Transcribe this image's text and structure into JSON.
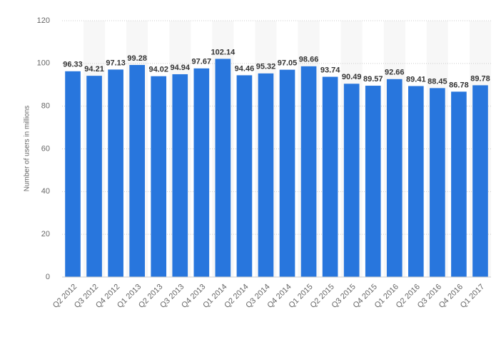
{
  "chart_data": {
    "type": "bar",
    "y_axis_label": "Number of users in millions",
    "categories": [
      "Q2 2012",
      "Q3 2012",
      "Q4 2012",
      "Q1 2013",
      "Q2 2013",
      "Q3 2013",
      "Q4 2013",
      "Q1 2014",
      "Q2 2014",
      "Q3 2014",
      "Q4 2014",
      "Q1 2015",
      "Q2 2015",
      "Q3 2015",
      "Q4 2015",
      "Q1 2016",
      "Q2 2016",
      "Q3 2016",
      "Q4 2016",
      "Q1 2017"
    ],
    "values": [
      96.33,
      94.21,
      97.13,
      99.28,
      94.02,
      94.94,
      97.67,
      102.14,
      94.46,
      95.32,
      97.05,
      98.66,
      93.74,
      90.49,
      89.57,
      92.66,
      89.41,
      88.45,
      86.78,
      89.78
    ],
    "color": "#2876dd",
    "ylim": [
      0,
      120
    ],
    "yticks": [
      0,
      20,
      40,
      60,
      80,
      100,
      120
    ],
    "grid": true
  }
}
